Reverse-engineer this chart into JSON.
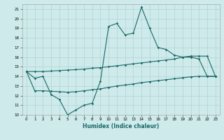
{
  "xlabel": "Humidex (Indice chaleur)",
  "bg_color": "#ceeaea",
  "grid_color": "#b0d4d4",
  "line_color": "#1a6868",
  "xlim": [
    -0.5,
    23.5
  ],
  "ylim": [
    10,
    21.5
  ],
  "yticks": [
    10,
    11,
    12,
    13,
    14,
    15,
    16,
    17,
    18,
    19,
    20,
    21
  ],
  "xticks": [
    0,
    1,
    2,
    3,
    4,
    5,
    6,
    7,
    8,
    9,
    10,
    11,
    12,
    13,
    14,
    15,
    16,
    17,
    18,
    19,
    20,
    21,
    22,
    23
  ],
  "main_line_y": [
    14.5,
    13.8,
    14.0,
    12.1,
    11.6,
    10.0,
    10.5,
    11.0,
    11.2,
    13.5,
    19.2,
    19.5,
    18.3,
    18.5,
    21.2,
    19.0,
    17.0,
    16.8,
    16.2,
    16.0,
    16.0,
    15.8,
    14.0,
    14.0
  ],
  "upper_line_y": [
    14.5,
    14.5,
    14.5,
    14.55,
    14.6,
    14.65,
    14.7,
    14.75,
    14.85,
    14.9,
    15.0,
    15.1,
    15.2,
    15.3,
    15.4,
    15.5,
    15.6,
    15.7,
    15.8,
    16.0,
    16.1,
    16.1,
    16.1,
    14.0
  ],
  "lower_line_y": [
    14.5,
    12.5,
    12.5,
    12.45,
    12.4,
    12.35,
    12.4,
    12.5,
    12.6,
    12.7,
    12.85,
    13.0,
    13.1,
    13.2,
    13.35,
    13.45,
    13.55,
    13.65,
    13.75,
    13.85,
    13.95,
    14.0,
    14.0,
    14.0
  ]
}
